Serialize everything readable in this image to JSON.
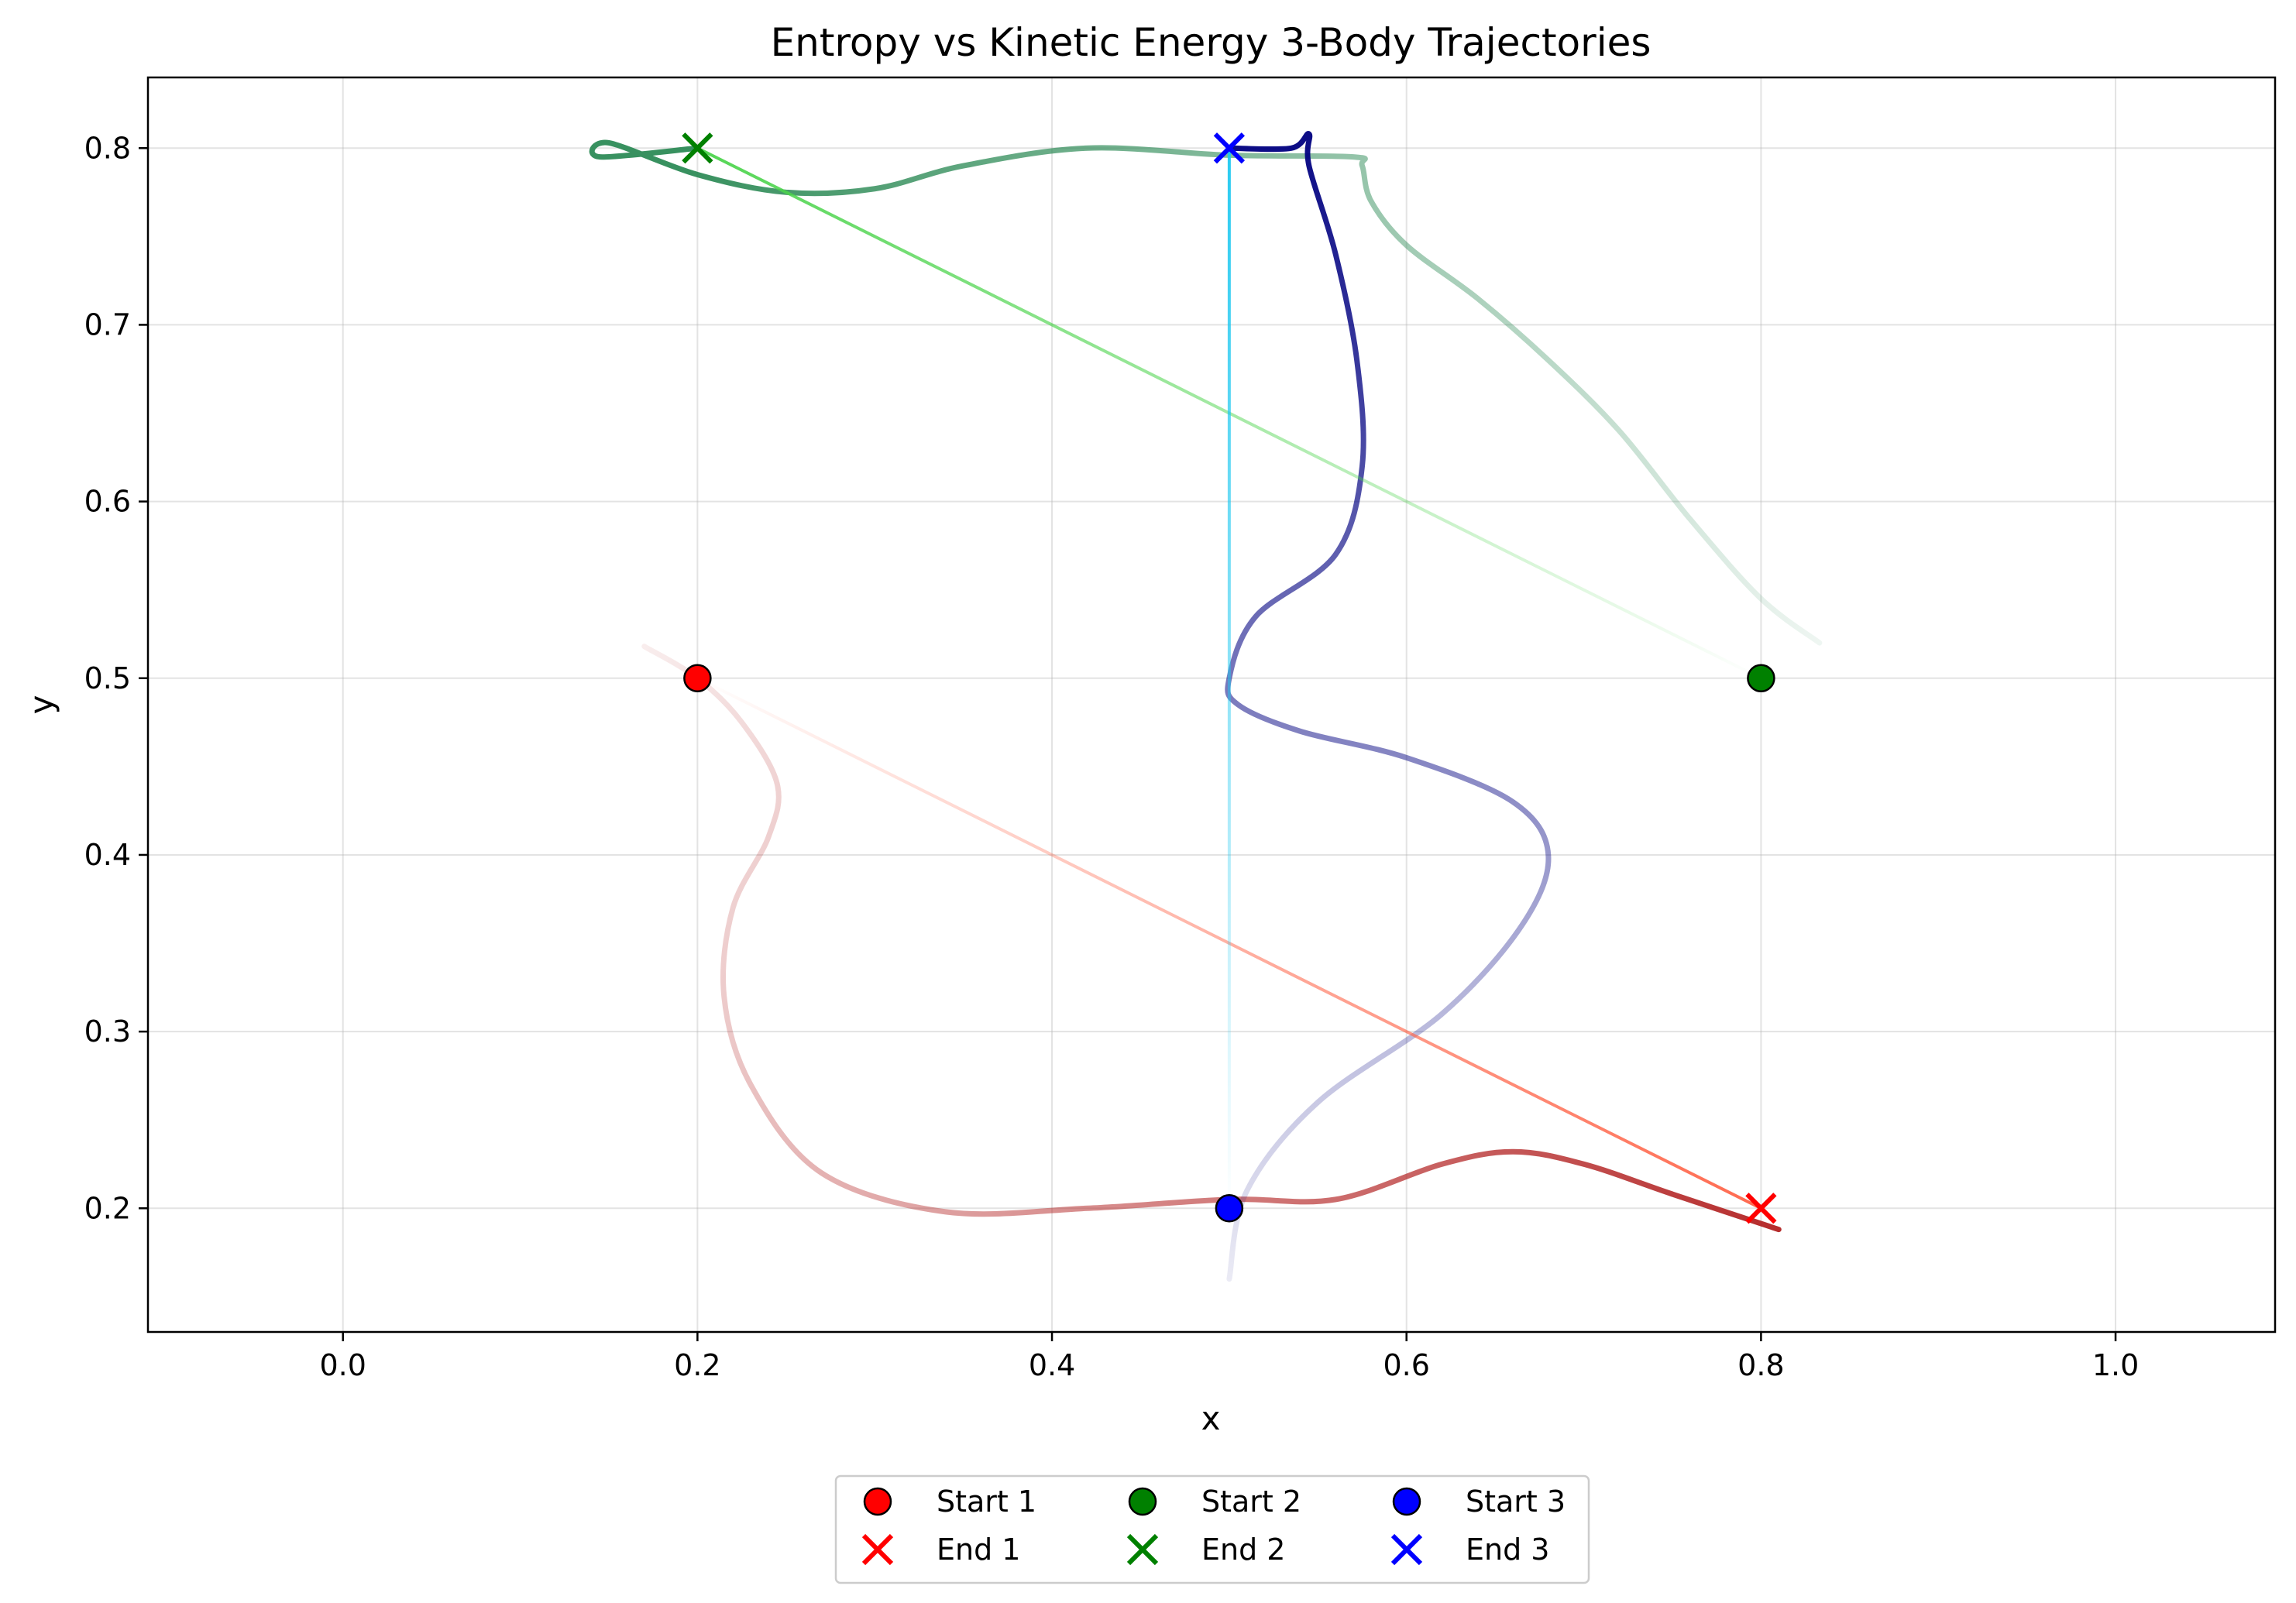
{
  "chart_data": {
    "type": "line",
    "title": "Entropy vs Kinetic Energy 3-Body Trajectories",
    "xlabel": "x",
    "ylabel": "y",
    "xlim": [
      -0.11,
      1.09
    ],
    "ylim": [
      0.13,
      0.84
    ],
    "xticks": [
      "0.0",
      "0.2",
      "0.4",
      "0.6",
      "0.8",
      "1.0"
    ],
    "yticks": [
      "0.2",
      "0.3",
      "0.4",
      "0.5",
      "0.6",
      "0.7",
      "0.8"
    ],
    "grid": true,
    "legend_placement": "below plot, center",
    "series": [
      {
        "color": "#b22222",
        "points": [
          [
            0.17,
            0.518
          ],
          [
            0.2,
            0.5
          ],
          [
            0.225,
            0.475
          ],
          [
            0.245,
            0.44
          ],
          [
            0.24,
            0.41
          ],
          [
            0.22,
            0.37
          ],
          [
            0.215,
            0.32
          ],
          [
            0.23,
            0.27
          ],
          [
            0.27,
            0.22
          ],
          [
            0.34,
            0.198
          ],
          [
            0.42,
            0.2
          ],
          [
            0.5,
            0.205
          ],
          [
            0.56,
            0.205
          ],
          [
            0.62,
            0.225
          ],
          [
            0.66,
            0.232
          ],
          [
            0.7,
            0.225
          ],
          [
            0.75,
            0.208
          ],
          [
            0.81,
            0.188
          ]
        ]
      },
      {
        "color": "#2e8b57",
        "points": [
          [
            0.833,
            0.52
          ],
          [
            0.8,
            0.545
          ],
          [
            0.76,
            0.59
          ],
          [
            0.72,
            0.64
          ],
          [
            0.68,
            0.68
          ],
          [
            0.64,
            0.715
          ],
          [
            0.6,
            0.745
          ],
          [
            0.58,
            0.77
          ],
          [
            0.575,
            0.79
          ],
          [
            0.57,
            0.795
          ],
          [
            0.5,
            0.796
          ],
          [
            0.42,
            0.8
          ],
          [
            0.35,
            0.79
          ],
          [
            0.3,
            0.777
          ],
          [
            0.25,
            0.775
          ],
          [
            0.2,
            0.785
          ],
          [
            0.15,
            0.803
          ],
          [
            0.145,
            0.795
          ],
          [
            0.2,
            0.8
          ]
        ]
      },
      {
        "color": "#000080",
        "points": [
          [
            0.5,
            0.16
          ],
          [
            0.51,
            0.21
          ],
          [
            0.55,
            0.26
          ],
          [
            0.62,
            0.31
          ],
          [
            0.665,
            0.36
          ],
          [
            0.68,
            0.4
          ],
          [
            0.66,
            0.43
          ],
          [
            0.6,
            0.455
          ],
          [
            0.54,
            0.47
          ],
          [
            0.505,
            0.485
          ],
          [
            0.5,
            0.5
          ],
          [
            0.515,
            0.535
          ],
          [
            0.56,
            0.57
          ],
          [
            0.575,
            0.62
          ],
          [
            0.572,
            0.68
          ],
          [
            0.56,
            0.74
          ],
          [
            0.545,
            0.79
          ],
          [
            0.545,
            0.808
          ],
          [
            0.535,
            0.8
          ],
          [
            0.5,
            0.8
          ]
        ]
      },
      {
        "color": "#ff6347",
        "points": [
          [
            0.2,
            0.5
          ],
          [
            0.8,
            0.2
          ]
        ]
      },
      {
        "color": "#4cd44c",
        "points": [
          [
            0.8,
            0.5
          ],
          [
            0.2,
            0.8
          ]
        ]
      },
      {
        "color": "#1ec8f0",
        "points": [
          [
            0.5,
            0.2
          ],
          [
            0.5,
            0.8
          ]
        ]
      }
    ],
    "markers": [
      {
        "name": "Start 1",
        "kind": "start",
        "x": 0.2,
        "y": 0.5,
        "color": "#ff0000"
      },
      {
        "name": "Start 2",
        "kind": "start",
        "x": 0.8,
        "y": 0.5,
        "color": "#008000"
      },
      {
        "name": "Start 3",
        "kind": "start",
        "x": 0.5,
        "y": 0.2,
        "color": "#0000ff"
      },
      {
        "name": "End 1",
        "kind": "end",
        "x": 0.8,
        "y": 0.2,
        "color": "#ff0000"
      },
      {
        "name": "End 2",
        "kind": "end",
        "x": 0.2,
        "y": 0.8,
        "color": "#008000"
      },
      {
        "name": "End 3",
        "kind": "end",
        "x": 0.5,
        "y": 0.8,
        "color": "#0000ff"
      }
    ],
    "legend": [
      {
        "label": "Start 1",
        "kind": "start",
        "color": "#ff0000"
      },
      {
        "label": "End 1",
        "kind": "end",
        "color": "#ff0000"
      },
      {
        "label": "Start 2",
        "kind": "start",
        "color": "#008000"
      },
      {
        "label": "End 2",
        "kind": "end",
        "color": "#008000"
      },
      {
        "label": "Start 3",
        "kind": "start",
        "color": "#0000ff"
      },
      {
        "label": "End 3",
        "kind": "end",
        "color": "#0000ff"
      }
    ]
  }
}
